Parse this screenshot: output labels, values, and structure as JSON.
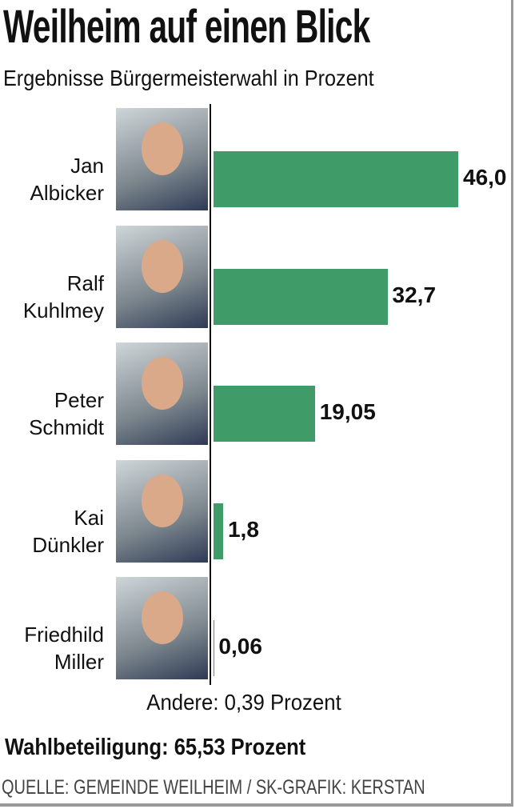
{
  "chart_data": {
    "type": "bar",
    "orientation": "horizontal",
    "title": "Weilheim auf einen Blick",
    "subtitle": "Ergebnisse Bürgermeisterwahl in Prozent",
    "categories": [
      "Jan Albicker",
      "Ralf Kuhlmey",
      "Peter Schmidt",
      "Kai Dünkler",
      "Friedhild Miller"
    ],
    "values": [
      46.0,
      32.7,
      19.05,
      1.8,
      0.06
    ],
    "value_labels": [
      "46,0",
      "32,7",
      "19,05",
      "1,8",
      "0,06"
    ],
    "color": "#3f9b68",
    "xlim": [
      0,
      46
    ],
    "note": "Andere: 0,39 Prozent",
    "turnout": "Wahlbeteiligung: 65,53 Prozent",
    "source": "QUELLE: GEMEINDE WEILHEIM / SK-GRAFIK: KERSTAN"
  }
}
